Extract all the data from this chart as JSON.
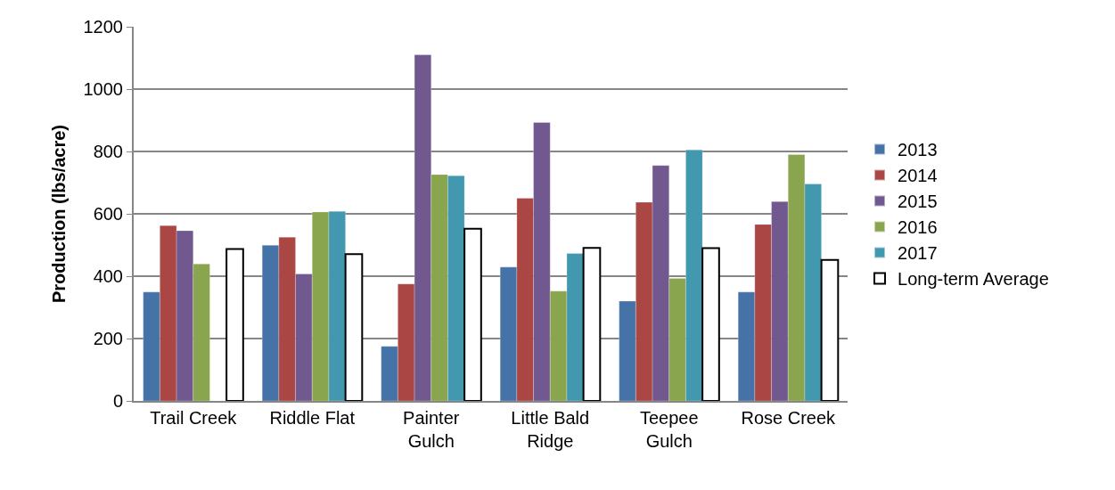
{
  "chart_data": {
    "type": "bar",
    "ylabel": "Production (lbs/acre)",
    "categories": [
      "Trail Creek",
      "Riddle Flat",
      "Painter Gulch",
      "Little Bald Ridge",
      "Teepee Gulch",
      "Rose Creek"
    ],
    "series": [
      {
        "name": "2013",
        "color": "#4572a7",
        "values": [
          349,
          499,
          175,
          429,
          320,
          349
        ]
      },
      {
        "name": "2014",
        "color": "#aa4643",
        "values": [
          562,
          525,
          375,
          650,
          637,
          566
        ]
      },
      {
        "name": "2015",
        "color": "#71588f",
        "values": [
          546,
          407,
          1110,
          893,
          755,
          639
        ]
      },
      {
        "name": "2016",
        "color": "#89a54e",
        "values": [
          439,
          606,
          726,
          352,
          393,
          790
        ]
      },
      {
        "name": "2017",
        "color": "#4198af",
        "values": [
          null,
          608,
          722,
          473,
          805,
          696
        ]
      },
      {
        "name": "Long-term Average",
        "color": "#ffffff",
        "values": [
          487,
          471,
          552,
          491,
          490,
          452
        ]
      }
    ],
    "ylim": [
      0,
      1200
    ],
    "yticks": [
      0,
      200,
      400,
      600,
      800,
      1000,
      1200
    ],
    "grid": "y",
    "legend": "right"
  }
}
